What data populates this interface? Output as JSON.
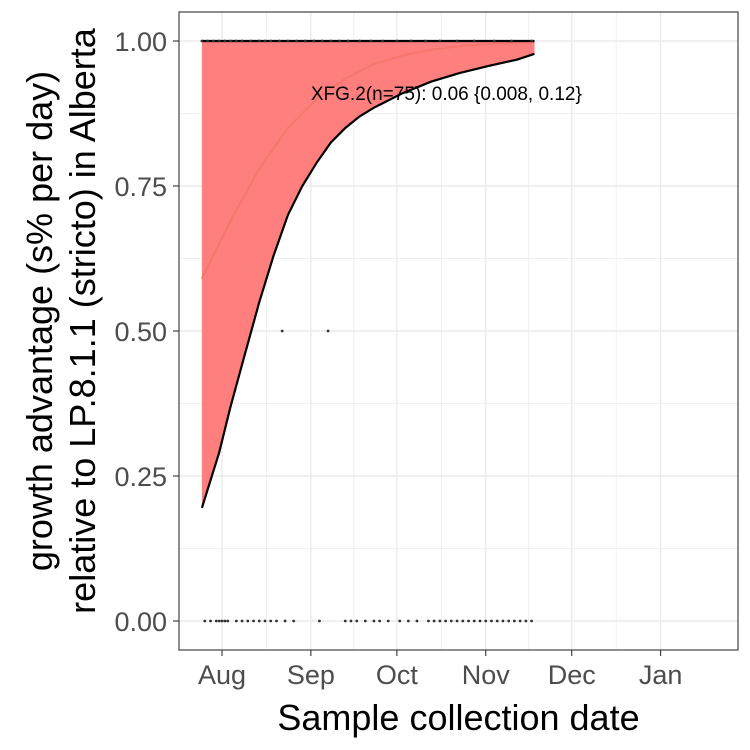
{
  "chart_data": {
    "type": "line",
    "x_scale": "date",
    "xlabel": "Sample collection date",
    "ylabel_lines": [
      "growth advantage (s% per day)",
      "relative to LP.8.1.1 (stricto) in Alberta"
    ],
    "xlim": [
      "2025-07-17",
      "2026-01-28"
    ],
    "ylim": [
      -0.05,
      1.05
    ],
    "x_ticks": [
      {
        "label": "Aug",
        "date": "2025-08-01"
      },
      {
        "label": "Sep",
        "date": "2025-09-01"
      },
      {
        "label": "Oct",
        "date": "2025-10-01"
      },
      {
        "label": "Nov",
        "date": "2025-11-01"
      },
      {
        "label": "Dec",
        "date": "2025-12-01"
      },
      {
        "label": "Jan",
        "date": "2026-01-01"
      }
    ],
    "y_ticks": [
      {
        "label": "0.00",
        "value": 0
      },
      {
        "label": "0.25",
        "value": 0.25
      },
      {
        "label": "0.50",
        "value": 0.5
      },
      {
        "label": "0.75",
        "value": 0.75
      },
      {
        "label": "1.00",
        "value": 1
      }
    ],
    "grid": true,
    "colors": {
      "fit": "#f8766d",
      "ribbon": "#ff7f7f",
      "bound": "#000000",
      "point": "#333333",
      "grid": "#ebebeb",
      "panel_border": "#333333"
    },
    "annotation": {
      "text": "XFG.2(n=75): 0.06 {0.008, 0.12}",
      "x": "2025-09-01",
      "y": 0.91
    },
    "series": [
      {
        "name": "XFG.2",
        "role": "fit",
        "x": [
          "2025-07-25",
          "2025-08-04",
          "2025-08-14",
          "2025-08-24",
          "2025-09-03",
          "2025-09-13",
          "2025-09-23",
          "2025-10-03",
          "2025-10-13",
          "2025-10-23",
          "2025-11-02",
          "2025-11-12",
          "2025-11-18"
        ],
        "y": [
          0.59,
          0.69,
          0.78,
          0.85,
          0.9,
          0.935,
          0.96,
          0.975,
          0.985,
          0.991,
          0.995,
          0.997,
          0.998
        ]
      },
      {
        "role": "lower_bound",
        "x": [
          "2025-07-25",
          "2025-07-31",
          "2025-08-04",
          "2025-08-09",
          "2025-08-14",
          "2025-08-19",
          "2025-08-24",
          "2025-08-29",
          "2025-09-03",
          "2025-09-08",
          "2025-09-13",
          "2025-09-18",
          "2025-09-23",
          "2025-10-03",
          "2025-10-13",
          "2025-10-23",
          "2025-11-02",
          "2025-11-12",
          "2025-11-18"
        ],
        "y": [
          0.195,
          0.29,
          0.37,
          0.46,
          0.55,
          0.63,
          0.7,
          0.75,
          0.79,
          0.825,
          0.85,
          0.87,
          0.885,
          0.91,
          0.93,
          0.945,
          0.957,
          0.968,
          0.978
        ]
      },
      {
        "role": "upper_bound",
        "x": [
          "2025-07-25",
          "2025-11-18"
        ],
        "y": [
          1.0,
          1.0
        ]
      }
    ],
    "points": {
      "y_one": [
        "2025-07-25",
        "2025-07-27",
        "2025-07-29",
        "2025-07-31",
        "2025-08-02",
        "2025-08-04",
        "2025-08-06",
        "2025-08-08",
        "2025-08-11",
        "2025-08-14",
        "2025-08-16",
        "2025-08-18",
        "2025-08-21",
        "2025-08-24",
        "2025-08-27",
        "2025-08-30",
        "2025-09-02",
        "2025-09-05",
        "2025-09-08",
        "2025-09-11",
        "2025-09-14",
        "2025-09-18",
        "2025-09-22",
        "2025-09-26",
        "2025-10-01",
        "2025-10-06",
        "2025-10-11",
        "2025-10-16",
        "2025-10-22",
        "2025-10-28",
        "2025-11-04",
        "2025-11-10",
        "2025-11-17"
      ],
      "y_half": [
        "2025-08-22",
        "2025-09-07"
      ],
      "y_zero": [
        "2025-07-26",
        "2025-07-28",
        "2025-07-30",
        "2025-07-31",
        "2025-08-01",
        "2025-08-02",
        "2025-08-03",
        "2025-08-06",
        "2025-08-08",
        "2025-08-10",
        "2025-08-12",
        "2025-08-14",
        "2025-08-16",
        "2025-08-18",
        "2025-08-20",
        "2025-08-23",
        "2025-08-26",
        "2025-09-04",
        "2025-09-13",
        "2025-09-15",
        "2025-09-17",
        "2025-09-20",
        "2025-09-23",
        "2025-09-25",
        "2025-09-28",
        "2025-10-02",
        "2025-10-05",
        "2025-10-08",
        "2025-10-12",
        "2025-10-14",
        "2025-10-16",
        "2025-10-18",
        "2025-10-20",
        "2025-10-22",
        "2025-10-24",
        "2025-10-26",
        "2025-10-28",
        "2025-10-30",
        "2025-11-01",
        "2025-11-03",
        "2025-11-05",
        "2025-11-07",
        "2025-11-09",
        "2025-11-11",
        "2025-11-13",
        "2025-11-15",
        "2025-11-17"
      ]
    }
  }
}
